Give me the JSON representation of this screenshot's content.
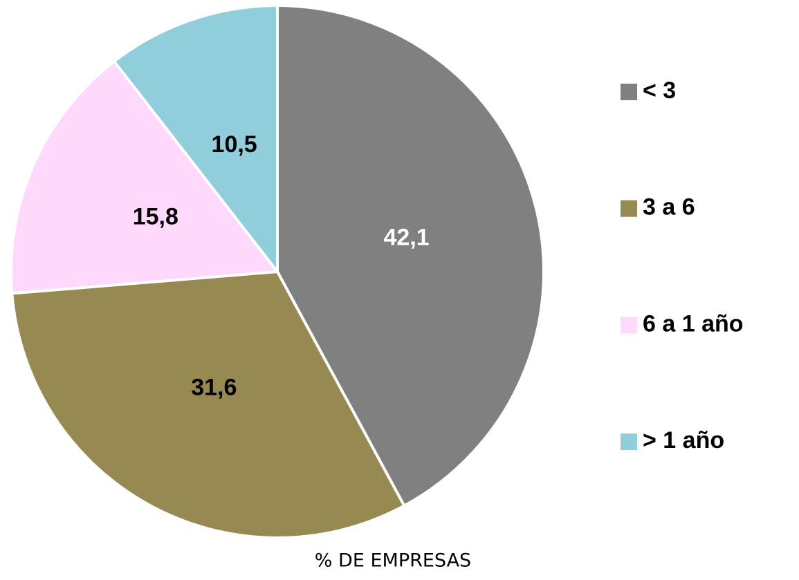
{
  "chart_data": {
    "type": "pie",
    "categories": [
      "< 3",
      "3 a 6",
      "6 a 1 año",
      "> 1 año"
    ],
    "values": [
      42.1,
      31.6,
      15.8,
      10.5
    ],
    "value_labels": [
      "42,1",
      "31,6",
      "15,8",
      "10,5"
    ],
    "colors": [
      "#808080",
      "#968a52",
      "#ffd9fc",
      "#92cddc"
    ],
    "label_colors": [
      "#ffffff",
      "#000000",
      "#000000",
      "#000000"
    ],
    "xlabel": "% DE EMPRESAS",
    "legend": "right"
  }
}
